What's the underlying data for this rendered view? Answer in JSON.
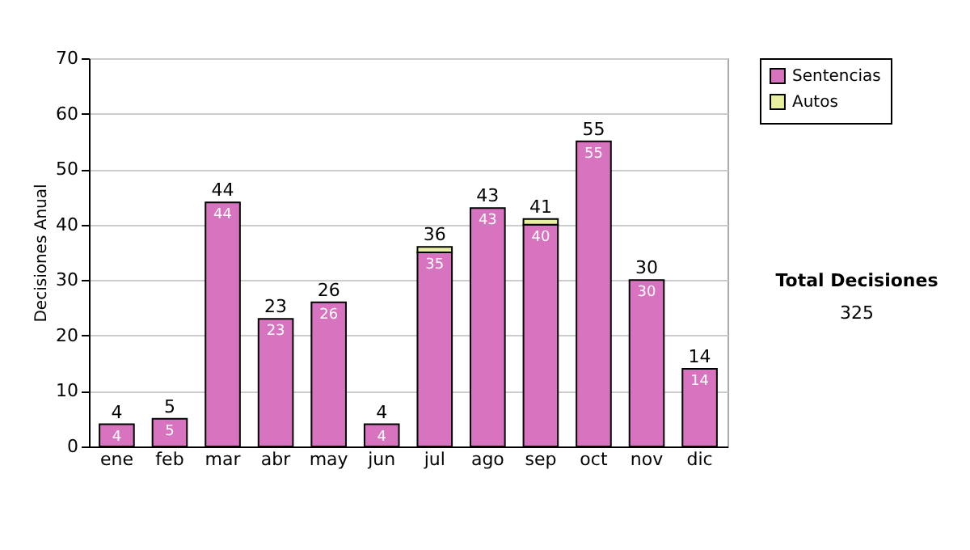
{
  "chart_data": {
    "type": "bar",
    "stacked": true,
    "ylabel": "Decisiones Anual",
    "categories": [
      "ene",
      "feb",
      "mar",
      "abr",
      "may",
      "jun",
      "jul",
      "ago",
      "sep",
      "oct",
      "nov",
      "dic"
    ],
    "series": [
      {
        "name": "Sentencias",
        "color": "#d873c0",
        "values": [
          4,
          5,
          44,
          23,
          26,
          4,
          35,
          43,
          40,
          55,
          30,
          14
        ],
        "value_labels": [
          "4",
          "5",
          "44",
          "23",
          "26",
          "4",
          "35",
          "43",
          "40",
          "55",
          "30",
          "14"
        ]
      },
      {
        "name": "Autos",
        "color": "#e8f0a0",
        "values": [
          0,
          0,
          0,
          0,
          0,
          0,
          1,
          0,
          1,
          0,
          0,
          0
        ]
      }
    ],
    "totals": [
      "4",
      "5",
      "44",
      "23",
      "26",
      "4",
      "36",
      "43",
      "41",
      "55",
      "30",
      "14"
    ],
    "ylim": [
      0,
      70
    ],
    "yticks": [
      0,
      10,
      20,
      30,
      40,
      50,
      60,
      70
    ],
    "grid": "y",
    "legend": "right",
    "annotations": [
      "Total Decisiones",
      "325"
    ]
  }
}
